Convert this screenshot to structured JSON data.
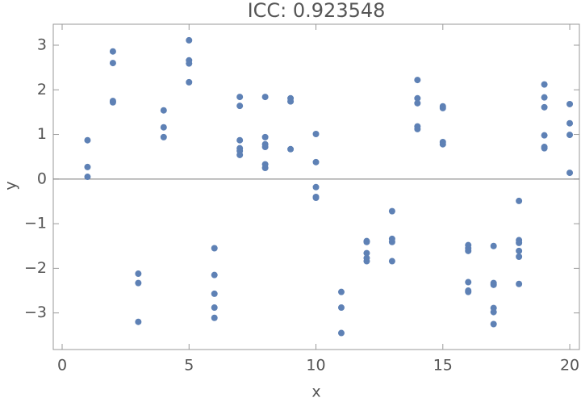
{
  "chart_data": {
    "type": "scatter",
    "title": "ICC: 0.923548",
    "x_label": "x",
    "y_label": "y",
    "color": "#5e81b5",
    "x": [
      1,
      1,
      1,
      2,
      2,
      2,
      2,
      3,
      3,
      3,
      4,
      4,
      4,
      5,
      5,
      5,
      5,
      6,
      6,
      6,
      6,
      6,
      7,
      7,
      7,
      7,
      7,
      7,
      8,
      8,
      8,
      8,
      8,
      8,
      9,
      9,
      9,
      10,
      10,
      10,
      10,
      10,
      11,
      11,
      11,
      12,
      12,
      12,
      12,
      12,
      13,
      13,
      13,
      13,
      14,
      14,
      14,
      14,
      14,
      15,
      15,
      15,
      15,
      16,
      16,
      16,
      16,
      16,
      16,
      17,
      17,
      17,
      17,
      17,
      17,
      18,
      18,
      18,
      18,
      18,
      18,
      19,
      19,
      19,
      19,
      19,
      19,
      20,
      20,
      20,
      20
    ],
    "y": [
      0.87,
      0.27,
      0.05,
      2.86,
      2.6,
      1.75,
      1.72,
      -2.12,
      -2.33,
      -3.2,
      1.54,
      1.16,
      0.94,
      3.11,
      2.66,
      2.59,
      2.17,
      -1.55,
      -2.15,
      -2.57,
      -2.88,
      -3.11,
      1.84,
      1.64,
      0.87,
      0.69,
      0.63,
      0.54,
      1.84,
      0.94,
      0.78,
      0.72,
      0.33,
      0.25,
      1.81,
      1.74,
      0.67,
      1.01,
      0.38,
      -0.18,
      -0.4,
      -0.42,
      -2.53,
      -2.88,
      -3.45,
      -1.39,
      -1.41,
      -1.66,
      -1.77,
      -1.84,
      -0.72,
      -1.34,
      -1.41,
      -1.84,
      2.22,
      1.81,
      1.7,
      1.18,
      1.12,
      1.63,
      1.59,
      0.83,
      0.78,
      -1.48,
      -1.55,
      -1.61,
      -2.31,
      -2.5,
      -2.53,
      -1.5,
      -2.33,
      -2.37,
      -2.89,
      -2.98,
      -3.25,
      -0.49,
      -1.37,
      -1.43,
      -1.61,
      -1.74,
      -2.35,
      2.12,
      1.83,
      1.61,
      0.98,
      0.72,
      0.69,
      1.68,
      1.25,
      0.99,
      0.14
    ],
    "xlim": [
      -0.35,
      20.38
    ],
    "ylim": [
      -3.82,
      3.47
    ],
    "xticks": [
      0,
      5,
      10,
      15,
      20
    ],
    "yticks": [
      {
        "value": -3,
        "label": "−3"
      },
      {
        "value": -2,
        "label": "−2"
      },
      {
        "value": -1,
        "label": "−1"
      },
      0,
      1,
      2,
      3
    ]
  }
}
